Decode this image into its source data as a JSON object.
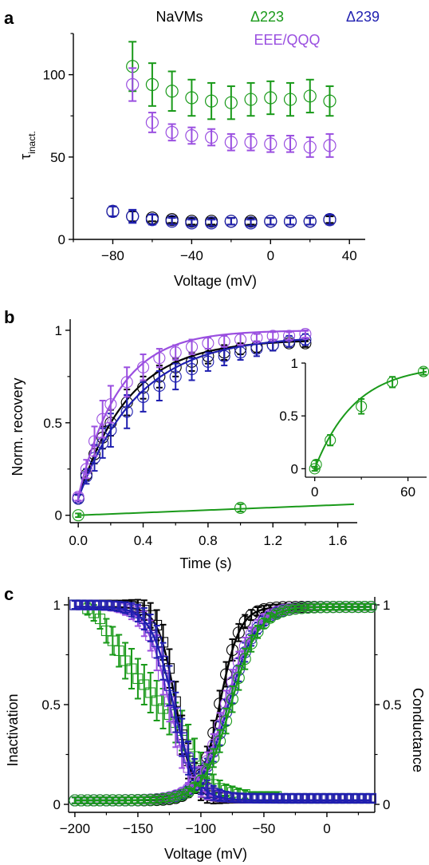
{
  "colors": {
    "navms": "#000000",
    "d223": "#1a9a1a",
    "d239": "#1f1fb0",
    "eee": "#9a4fe0",
    "axis": "#000000"
  },
  "chart_data": [
    {
      "panel_label": "a",
      "type": "scatter",
      "xlabel": "Voltage (mV)",
      "ylabel": "τ",
      "ylabel_sub": "inact.",
      "xlim": [
        -100,
        48
      ],
      "ylim": [
        0,
        125
      ],
      "xticks": [
        -80,
        -40,
        0,
        40
      ],
      "yticks": [
        0,
        50,
        100
      ],
      "legend": {
        "items": [
          "NaVMs",
          "Δ223",
          "Δ239",
          "EEE/QQQ"
        ]
      },
      "series": [
        {
          "name": "NaVMs",
          "key": "navms",
          "x": [
            -80,
            -70,
            -60,
            -50,
            -40,
            -30,
            -20,
            -10,
            0,
            10,
            20,
            30
          ],
          "y": [
            17,
            14,
            13,
            12,
            11,
            11,
            11,
            11,
            11,
            11,
            11,
            12
          ],
          "err": [
            3,
            3,
            2,
            2,
            2,
            2,
            2,
            2,
            2,
            2,
            2,
            2
          ]
        },
        {
          "name": "Δ239",
          "key": "d239",
          "x": [
            -80,
            -70,
            -60,
            -50,
            -40,
            -30,
            -20,
            -10,
            0,
            10,
            20,
            30
          ],
          "y": [
            17,
            14,
            12,
            11,
            10,
            10,
            11,
            10,
            11,
            11,
            11,
            12
          ],
          "err": [
            3,
            4,
            3,
            2,
            2,
            2,
            2,
            2,
            2,
            2,
            2,
            3
          ]
        },
        {
          "name": "Δ223",
          "key": "d223",
          "x": [
            -70,
            -60,
            -50,
            -40,
            -30,
            -20,
            -10,
            0,
            10,
            20,
            30
          ],
          "y": [
            105,
            94,
            90,
            86,
            84,
            83,
            85,
            86,
            85,
            87,
            84
          ],
          "err": [
            15,
            13,
            12,
            11,
            11,
            10,
            10,
            10,
            10,
            10,
            9
          ]
        },
        {
          "name": "EEE/QQQ",
          "key": "eee",
          "x": [
            -70,
            -60,
            -50,
            -40,
            -30,
            -20,
            -10,
            0,
            10,
            20,
            30
          ],
          "y": [
            94,
            71,
            65,
            63,
            62,
            59,
            59,
            58,
            58,
            56,
            57
          ],
          "err": [
            10,
            6,
            5,
            5,
            5,
            5,
            5,
            5,
            5,
            6,
            7
          ]
        }
      ]
    },
    {
      "panel_label": "b",
      "type": "line",
      "xlabel": "Time (s)",
      "ylabel": "Norm. recovery",
      "xlim": [
        -0.05,
        1.72
      ],
      "ylim": [
        -0.04,
        1.06
      ],
      "xticks": [
        0.0,
        0.4,
        0.8,
        1.2,
        1.6
      ],
      "xtick_labels": [
        "0.0",
        "0.4",
        "0.8",
        "1.2",
        "1.6"
      ],
      "yticks": [
        0,
        0.5,
        1
      ],
      "ytick_labels": [
        "0",
        "0.5",
        "1"
      ],
      "series": [
        {
          "name": "NaVMs",
          "key": "navms",
          "x": [
            0.0,
            0.05,
            0.1,
            0.15,
            0.2,
            0.3,
            0.4,
            0.5,
            0.6,
            0.7,
            0.8,
            0.9,
            1.0,
            1.1,
            1.2,
            1.3,
            1.4
          ],
          "y": [
            0.09,
            0.22,
            0.33,
            0.42,
            0.5,
            0.61,
            0.69,
            0.75,
            0.8,
            0.83,
            0.86,
            0.88,
            0.9,
            0.91,
            0.92,
            0.93,
            0.93
          ],
          "err": [
            0.02,
            0.03,
            0.05,
            0.06,
            0.07,
            0.07,
            0.06,
            0.06,
            0.05,
            0.05,
            0.04,
            0.04,
            0.03,
            0.03,
            0.03,
            0.02,
            0.02
          ],
          "fit": true
        },
        {
          "name": "Δ239",
          "key": "d239",
          "x": [
            0.0,
            0.05,
            0.1,
            0.15,
            0.2,
            0.3,
            0.4,
            0.5,
            0.6,
            0.7,
            0.8,
            0.9,
            1.0,
            1.1,
            1.2,
            1.3,
            1.4
          ],
          "y": [
            0.09,
            0.21,
            0.31,
            0.39,
            0.46,
            0.56,
            0.64,
            0.7,
            0.75,
            0.79,
            0.83,
            0.86,
            0.88,
            0.9,
            0.92,
            0.94,
            0.95
          ],
          "err": [
            0.02,
            0.04,
            0.07,
            0.08,
            0.09,
            0.09,
            0.08,
            0.08,
            0.07,
            0.06,
            0.05,
            0.05,
            0.04,
            0.04,
            0.03,
            0.03,
            0.03
          ],
          "fit": true
        },
        {
          "name": "EEE/QQQ",
          "key": "eee",
          "x": [
            0.0,
            0.05,
            0.1,
            0.15,
            0.2,
            0.3,
            0.4,
            0.5,
            0.6,
            0.7,
            0.8,
            0.9,
            1.0,
            1.1,
            1.2,
            1.3,
            1.4
          ],
          "y": [
            0.1,
            0.25,
            0.4,
            0.52,
            0.6,
            0.72,
            0.8,
            0.85,
            0.88,
            0.91,
            0.93,
            0.94,
            0.95,
            0.96,
            0.97,
            0.97,
            0.98
          ],
          "err": [
            0.02,
            0.05,
            0.08,
            0.1,
            0.1,
            0.08,
            0.07,
            0.05,
            0.04,
            0.04,
            0.03,
            0.03,
            0.03,
            0.02,
            0.02,
            0.02,
            0.02
          ],
          "fit": true
        },
        {
          "name": "Δ223",
          "key": "d223",
          "x": [
            0.0,
            1.0
          ],
          "y": [
            0.0,
            0.04
          ],
          "err": [
            0.01,
            0.02
          ],
          "fit": "line"
        }
      ],
      "inset": {
        "xlim": [
          -6,
          72
        ],
        "ylim": [
          -0.08,
          1.0
        ],
        "xticks": [
          0,
          60
        ],
        "yticks": [
          0,
          0.5,
          1
        ],
        "ytick_labels": [
          "0",
          "0.5",
          "1"
        ],
        "series": [
          {
            "name": "Δ223",
            "key": "d223",
            "x": [
              0,
              1,
              10,
              30,
              50,
              70
            ],
            "y": [
              0.0,
              0.04,
              0.27,
              0.59,
              0.82,
              0.92
            ],
            "err": [
              0.02,
              0.04,
              0.05,
              0.07,
              0.05,
              0.03
            ]
          }
        ]
      }
    },
    {
      "panel_label": "c",
      "type": "scatter",
      "xlabel": "Voltage (mV)",
      "ylabel_left": "Inactivation",
      "ylabel_right": "Conductance",
      "xlim": [
        -205,
        38
      ],
      "ylim": [
        -0.04,
        1.04
      ],
      "xticks": [
        -200,
        -150,
        -100,
        -50,
        0
      ],
      "yticks": [
        0,
        0.5,
        1
      ],
      "ytick_labels": [
        "0",
        "0.5",
        "1"
      ],
      "inactivation": [
        {
          "name": "NaVMs",
          "key": "navms",
          "v_half": -120,
          "k": 7
        },
        {
          "name": "EEE/QQQ",
          "key": "eee",
          "v_half": -125,
          "k": 9
        },
        {
          "name": "Δ239",
          "key": "d239",
          "v_half": -122,
          "k": 9
        }
      ],
      "inactivation_d223": {
        "name": "Δ223",
        "key": "d223",
        "x": [
          -200,
          -190,
          -185,
          -180,
          -175,
          -170,
          -165,
          -160,
          -155,
          -150,
          -145,
          -140,
          -135,
          -130,
          -125,
          -120,
          -115,
          -110,
          -105,
          -100,
          -95,
          -90,
          -85,
          -80,
          -75,
          -70,
          -65,
          -60,
          -55,
          -50,
          -45,
          -40,
          -35,
          -30,
          -25,
          -20,
          -15,
          -10,
          -5,
          0,
          5,
          10,
          15,
          20,
          25,
          30,
          35
        ],
        "y": [
          1.0,
          0.98,
          0.96,
          0.93,
          0.87,
          0.82,
          0.77,
          0.72,
          0.68,
          0.63,
          0.6,
          0.56,
          0.52,
          0.48,
          0.45,
          0.41,
          0.37,
          0.3,
          0.24,
          0.18,
          0.13,
          0.1,
          0.08,
          0.07,
          0.06,
          0.05,
          0.05,
          0.04,
          0.04,
          0.04,
          0.04,
          0.04,
          0.03,
          0.03,
          0.03,
          0.03,
          0.03,
          0.03,
          0.03,
          0.03,
          0.03,
          0.03,
          0.03,
          0.03,
          0.03,
          0.03,
          0.03
        ],
        "err": [
          0.02,
          0.03,
          0.04,
          0.05,
          0.06,
          0.07,
          0.08,
          0.09,
          0.1,
          0.1,
          0.1,
          0.1,
          0.1,
          0.1,
          0.1,
          0.1,
          0.1,
          0.1,
          0.09,
          0.08,
          0.06,
          0.05,
          0.04,
          0.03,
          0.03,
          0.03,
          0.02,
          0.02,
          0.02,
          0.02,
          0.02,
          0.02,
          0.02,
          0.02,
          0.02,
          0.02,
          0.02,
          0.02,
          0.02,
          0.02,
          0.02,
          0.02,
          0.02,
          0.02,
          0.02,
          0.02,
          0.02
        ]
      },
      "conductance": [
        {
          "name": "NaVMs",
          "key": "navms",
          "v_half": -85,
          "k": 8
        },
        {
          "name": "Δ239",
          "key": "d239",
          "v_half": -78,
          "k": 11
        },
        {
          "name": "EEE/QQQ",
          "key": "eee",
          "v_half": -80,
          "k": 11
        },
        {
          "name": "Δ223",
          "key": "d223",
          "v_half": -76,
          "k": 11
        }
      ]
    }
  ]
}
